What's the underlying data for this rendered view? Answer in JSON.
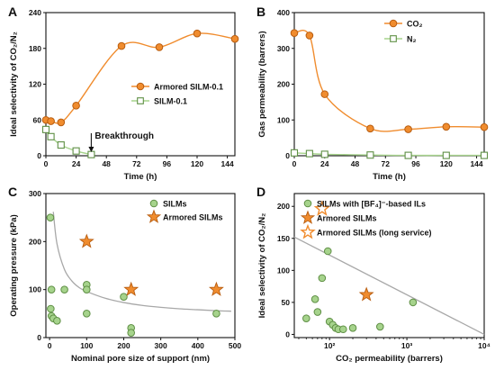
{
  "colors": {
    "orange": "#f08c2e",
    "orange_edge": "#b85d10",
    "green": "#a6d38c",
    "green_edge": "#5f8f45",
    "gray_curve": "#a8a8a8",
    "axis": "#111111"
  },
  "panels": [
    "A",
    "B",
    "C",
    "D"
  ],
  "chart_data": [
    {
      "panel": "A",
      "type": "line",
      "xlabel": "Time (h)",
      "ylabel": "Ideal selectivity of CO₂/N₂",
      "xlim": [
        0,
        150
      ],
      "ylim": [
        0,
        240
      ],
      "xticks": [
        0,
        24,
        48,
        72,
        96,
        120,
        144
      ],
      "yticks": [
        0,
        60,
        120,
        180,
        240
      ],
      "legend_position": "center-right",
      "annotation": "Breakthrough",
      "annotation_x": 36,
      "series": [
        {
          "name": "Armored SILM-0.1",
          "marker": "circle",
          "color": "orange",
          "x": [
            0,
            4,
            12,
            24,
            60,
            90,
            120,
            150
          ],
          "y": [
            60,
            58,
            56,
            84,
            184,
            182,
            205,
            196
          ]
        },
        {
          "name": "SILM-0.1",
          "marker": "square",
          "color": "green",
          "x": [
            0,
            4,
            12,
            24,
            36
          ],
          "y": [
            44,
            32,
            18,
            8,
            2
          ]
        }
      ]
    },
    {
      "panel": "B",
      "type": "line",
      "xlabel": "Time (h)",
      "ylabel": "Gas permeability (barrers)",
      "xlim": [
        0,
        150
      ],
      "ylim": [
        0,
        400
      ],
      "xticks": [
        0,
        24,
        48,
        72,
        96,
        120,
        144
      ],
      "yticks": [
        0,
        100,
        200,
        300,
        400
      ],
      "legend_position": "top-right",
      "series": [
        {
          "name": "CO₂",
          "marker": "circle",
          "color": "orange",
          "x": [
            0,
            12,
            24,
            60,
            90,
            120,
            150
          ],
          "y": [
            343,
            336,
            172,
            76,
            74,
            81,
            80
          ]
        },
        {
          "name": "N₂",
          "marker": "square",
          "color": "green",
          "x": [
            0,
            12,
            24,
            60,
            90,
            120,
            150
          ],
          "y": [
            8,
            6,
            4,
            2,
            1,
            1,
            1
          ]
        }
      ]
    },
    {
      "panel": "C",
      "type": "scatter",
      "xlabel": "Nominal pore size of support (nm)",
      "ylabel": "Operating pressure (kPa)",
      "xlim": [
        -10,
        500
      ],
      "ylim": [
        0,
        300
      ],
      "xticks": [
        0,
        100,
        200,
        300,
        400,
        500
      ],
      "yticks": [
        0,
        100,
        200,
        300
      ],
      "legend_position": "top-right",
      "series": [
        {
          "name": "SILMs",
          "marker": "circle",
          "color": "green",
          "x": [
            2,
            5,
            3,
            5,
            10,
            20,
            40,
            100,
            100,
            100,
            200,
            220,
            220,
            450
          ],
          "y": [
            250,
            100,
            60,
            45,
            40,
            35,
            100,
            110,
            100,
            50,
            85,
            20,
            10,
            50
          ]
        },
        {
          "name": "Armored SILMs",
          "marker": "star",
          "color": "orange",
          "x": [
            100,
            220,
            450
          ],
          "y": [
            200,
            100,
            100
          ]
        }
      ],
      "trend_curve": {
        "x": [
          10,
          20,
          40,
          60,
          80,
          100,
          150,
          200,
          250,
          300,
          350,
          400,
          450,
          490
        ],
        "y": [
          262,
          195,
          142,
          118,
          104,
          96,
          82,
          73,
          67,
          63,
          60,
          58,
          56,
          55
        ]
      }
    },
    {
      "panel": "D",
      "type": "scatter",
      "xlabel": "CO₂ permeability (barrers)",
      "ylabel": "Ideal selectivity of CO₂/N₂",
      "xscale": "log",
      "xlim": [
        35,
        10000
      ],
      "ylim": [
        -5,
        220
      ],
      "xticks": [
        100,
        1000,
        10000
      ],
      "xticklabels": [
        "10²",
        "10³",
        "10⁴"
      ],
      "yticks": [
        0,
        50,
        100,
        150,
        200
      ],
      "legend_position": "top-right",
      "series": [
        {
          "name": "SILMs with [BF₄]⁻-based ILs",
          "marker": "circle",
          "color": "green",
          "x": [
            50,
            65,
            70,
            80,
            95,
            100,
            110,
            120,
            130,
            150,
            200,
            450,
            1200
          ],
          "y": [
            25,
            55,
            35,
            88,
            130,
            20,
            15,
            10,
            8,
            8,
            10,
            12,
            50
          ]
        },
        {
          "name": "Armored SILMs",
          "marker": "star",
          "color": "orange",
          "x": [
            300
          ],
          "y": [
            62
          ]
        },
        {
          "name": "Armored SILMs (long service)",
          "marker": "star-open",
          "color": "orange",
          "x": [
            80
          ],
          "y": [
            196
          ]
        }
      ],
      "trend_line": {
        "x": [
          35,
          10000
        ],
        "y": [
          152,
          0
        ]
      }
    }
  ]
}
